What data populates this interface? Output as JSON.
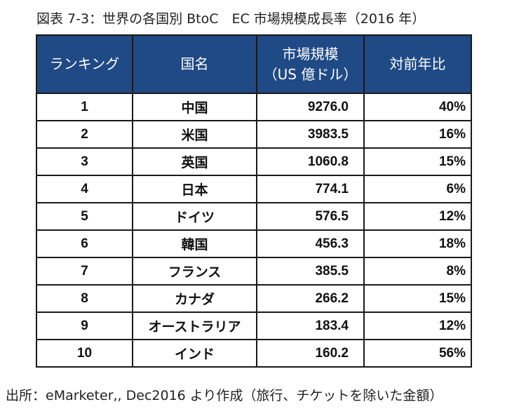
{
  "title": "図表 7-3：世界の各国別 BtoC　EC 市場規模成長率（2016 年）",
  "table": {
    "headers": {
      "rank": "ランキング",
      "country": "国名",
      "market_size_line1": "市場規模",
      "market_size_line2": "（US 億ドル）",
      "yoy": "対前年比"
    },
    "rows": [
      {
        "rank": "1",
        "country": "中国",
        "market_size": "9276.0",
        "yoy": "40%"
      },
      {
        "rank": "2",
        "country": "米国",
        "market_size": "3983.5",
        "yoy": "16%"
      },
      {
        "rank": "3",
        "country": "英国",
        "market_size": "1060.8",
        "yoy": "15%"
      },
      {
        "rank": "4",
        "country": "日本",
        "market_size": "774.1",
        "yoy": "6%"
      },
      {
        "rank": "5",
        "country": "ドイツ",
        "market_size": "576.5",
        "yoy": "12%"
      },
      {
        "rank": "6",
        "country": "韓国",
        "market_size": "456.3",
        "yoy": "18%"
      },
      {
        "rank": "7",
        "country": "フランス",
        "market_size": "385.5",
        "yoy": "8%"
      },
      {
        "rank": "8",
        "country": "カナダ",
        "market_size": "266.2",
        "yoy": "15%"
      },
      {
        "rank": "9",
        "country": "オーストラリア",
        "market_size": "183.4",
        "yoy": "12%"
      },
      {
        "rank": "10",
        "country": "インド",
        "market_size": "160.2",
        "yoy": "56%"
      }
    ]
  },
  "source": "出所：eMarketer,, Dec2016 より作成（旅行、チケットを除いた金額）",
  "colors": {
    "header_background": "#1f4a85",
    "header_text": "#ffffff",
    "border": "#1a1a1a"
  }
}
